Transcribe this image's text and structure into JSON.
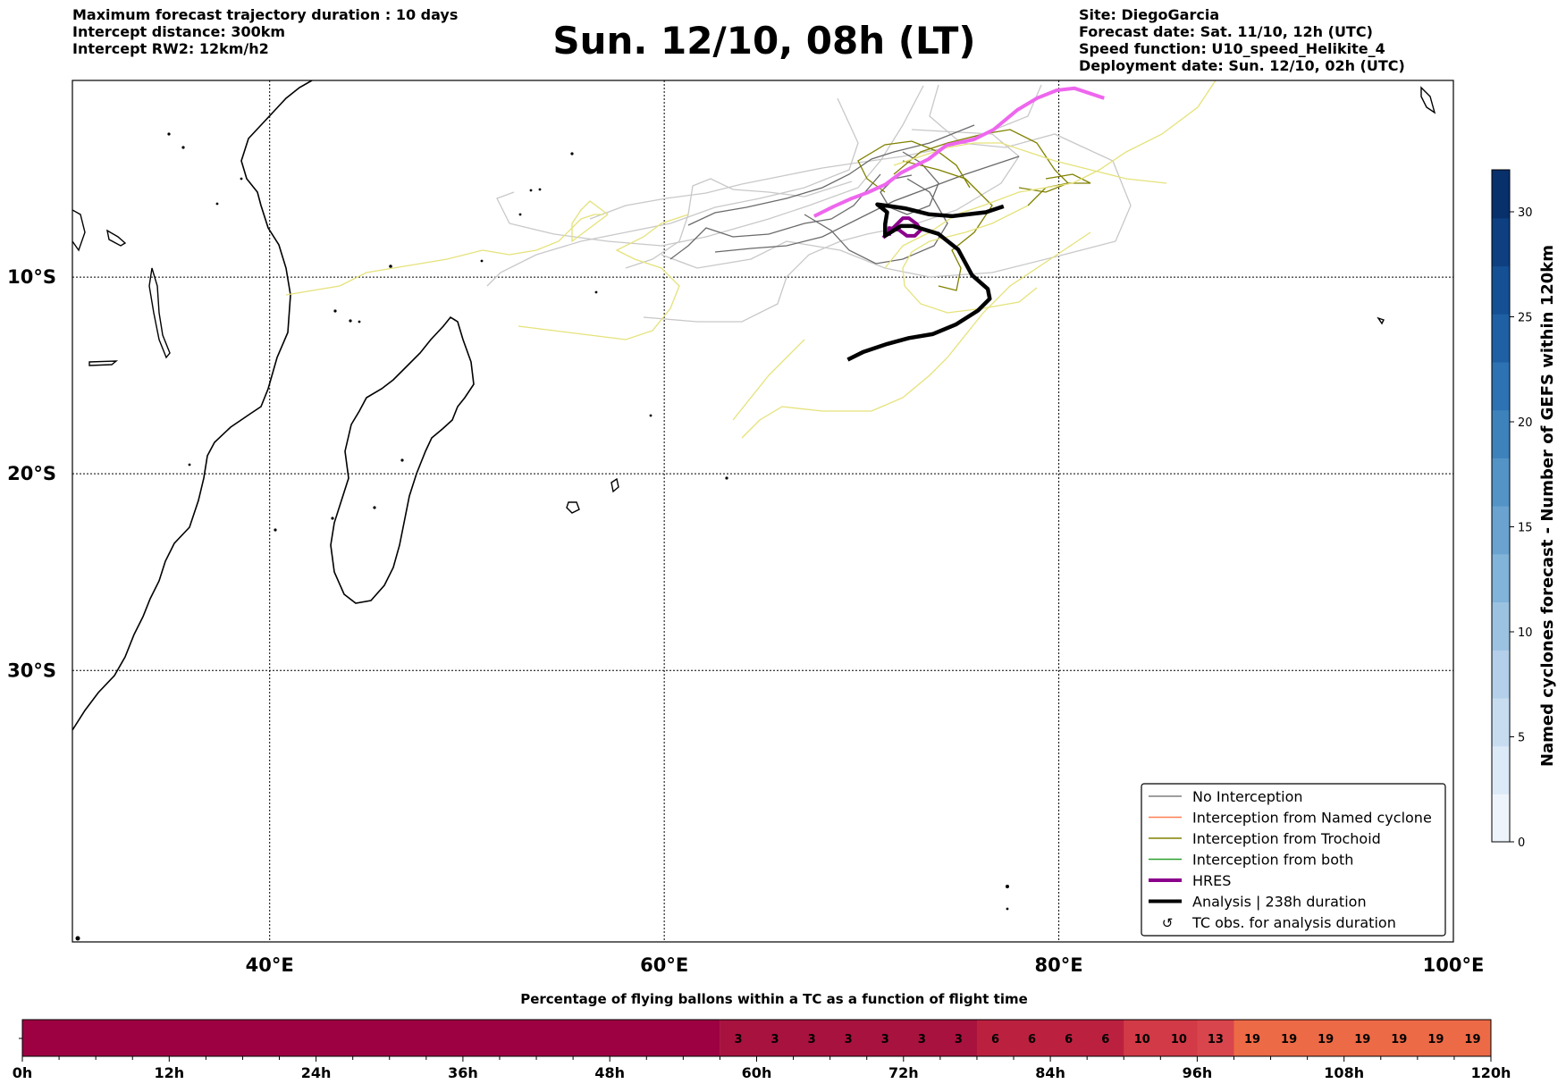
{
  "header": {
    "left_lines": [
      "Maximum forecast trajectory duration : 10 days",
      "Intercept distance: 300km",
      "Intercept RW2: 12km/h2"
    ],
    "title": "Sun. 12/10, 08h (LT)",
    "right_lines": [
      "Site: DiegoGarcia",
      "Forecast date: Sat. 11/10, 12h (UTC)",
      "Speed function: U10_speed_Helikite_4",
      "Deployment date: Sun. 12/10, 02h (UTC)"
    ]
  },
  "chart_data": [
    {
      "type": "map",
      "lon_range": [
        30,
        100
      ],
      "lat_range": [
        -43.8,
        0
      ],
      "x_tick_labels": [
        "40°E",
        "60°E",
        "80°E",
        "100°E"
      ],
      "x_tick_values": [
        40,
        60,
        80,
        100
      ],
      "y_tick_labels": [
        "10°S",
        "20°S",
        "30°S"
      ],
      "y_tick_values": [
        -10,
        -20,
        -30
      ],
      "grid": true,
      "legend_position": "bottom-right",
      "legend": [
        {
          "label": "No Interception",
          "color": "#7f7f7f",
          "style": "thin"
        },
        {
          "label": "Interception from Named cyclone",
          "color": "#ff7f50",
          "style": "thin"
        },
        {
          "label": "Interception from Trochoid",
          "color": "#808000",
          "style": "thin"
        },
        {
          "label": "Interception from both",
          "color": "#2ca02c",
          "style": "thin"
        },
        {
          "label": "HRES",
          "color": "#8b008b",
          "style": "thick"
        },
        {
          "label": "Analysis | 238h duration",
          "color": "#000000",
          "style": "thick"
        },
        {
          "label": "TC obs. for analysis duration",
          "color": "#000000",
          "style": "marker"
        }
      ],
      "tracks": {
        "analysis": [
          [
            77.2,
            -6.4
          ],
          [
            76.3,
            -6.7
          ],
          [
            74.6,
            -6.9
          ],
          [
            73.4,
            -6.8
          ],
          [
            72.2,
            -6.5
          ],
          [
            71.5,
            -6.4
          ],
          [
            70.8,
            -6.3
          ],
          [
            71.3,
            -6.7
          ],
          [
            71.2,
            -7.3
          ],
          [
            71.2,
            -7.9
          ],
          [
            72.0,
            -7.4
          ],
          [
            72.6,
            -7.4
          ],
          [
            73.9,
            -7.8
          ],
          [
            74.9,
            -8.6
          ],
          [
            75.6,
            -9.9
          ],
          [
            76.4,
            -10.6
          ],
          [
            76.5,
            -11.1
          ],
          [
            75.9,
            -11.7
          ],
          [
            74.8,
            -12.4
          ],
          [
            73.6,
            -12.9
          ],
          [
            72.4,
            -13.1
          ],
          [
            71.3,
            -13.4
          ],
          [
            70.1,
            -13.8
          ],
          [
            69.3,
            -14.2
          ]
        ],
        "hres": [
          [
            67.6,
            -6.9
          ],
          [
            68.6,
            -6.4
          ],
          [
            69.5,
            -6.0
          ],
          [
            70.3,
            -5.7
          ],
          [
            71.2,
            -5.3
          ],
          [
            72.0,
            -4.7
          ],
          [
            73.4,
            -4.0
          ],
          [
            74.3,
            -3.3
          ],
          [
            75.7,
            -3.0
          ],
          [
            76.7,
            -2.5
          ],
          [
            77.9,
            -1.5
          ],
          [
            78.9,
            -0.9
          ],
          [
            79.9,
            -0.5
          ],
          [
            80.8,
            -0.4
          ],
          [
            82.3,
            -0.9
          ]
        ],
        "hres_start": [
          [
            71.1,
            -8.0
          ],
          [
            71.4,
            -7.7
          ],
          [
            71.8,
            -7.3
          ],
          [
            72.1,
            -7.0
          ],
          [
            72.4,
            -7.0
          ],
          [
            72.8,
            -7.3
          ],
          [
            73.0,
            -7.6
          ],
          [
            72.7,
            -7.9
          ],
          [
            72.3,
            -7.9
          ],
          [
            71.9,
            -7.6
          ],
          [
            71.4,
            -7.5
          ],
          [
            71.4,
            -7.9
          ]
        ]
      },
      "colorbar": {
        "label": "Named cyclones forecast - Number of GEFS within 120km",
        "min": 0,
        "max": 32,
        "ticks": [
          0,
          5,
          10,
          15,
          20,
          25,
          30
        ],
        "colors": [
          "#eef4fb",
          "#dce9f6",
          "#c8dcf0",
          "#b3cfe9",
          "#9bc2e1",
          "#82b3d9",
          "#6aa3cf",
          "#5393c6",
          "#3e82bc",
          "#2d72b2",
          "#1f60a5",
          "#154f94",
          "#0d3f81",
          "#08306b"
        ]
      }
    },
    {
      "type": "heatmap",
      "title": "Percentage of flying ballons within a TC as a function of flight time",
      "x_tick_labels": [
        "0h",
        "12h",
        "24h",
        "36h",
        "48h",
        "60h",
        "72h",
        "84h",
        "96h",
        "108h",
        "120h"
      ],
      "hour_range": [
        0,
        120
      ],
      "cells_start_hour": 57,
      "cell_hours": 3,
      "values": [
        3,
        3,
        3,
        3,
        3,
        3,
        3,
        6,
        6,
        6,
        6,
        10,
        10,
        13,
        19,
        19,
        19,
        19,
        19,
        19,
        19
      ],
      "base_color": "#9d0142",
      "value_colors": {
        "3": "#a8123f",
        "6": "#bb213f",
        "10": "#d13a46",
        "13": "#d9454c",
        "19": "#ed6a46"
      }
    }
  ]
}
